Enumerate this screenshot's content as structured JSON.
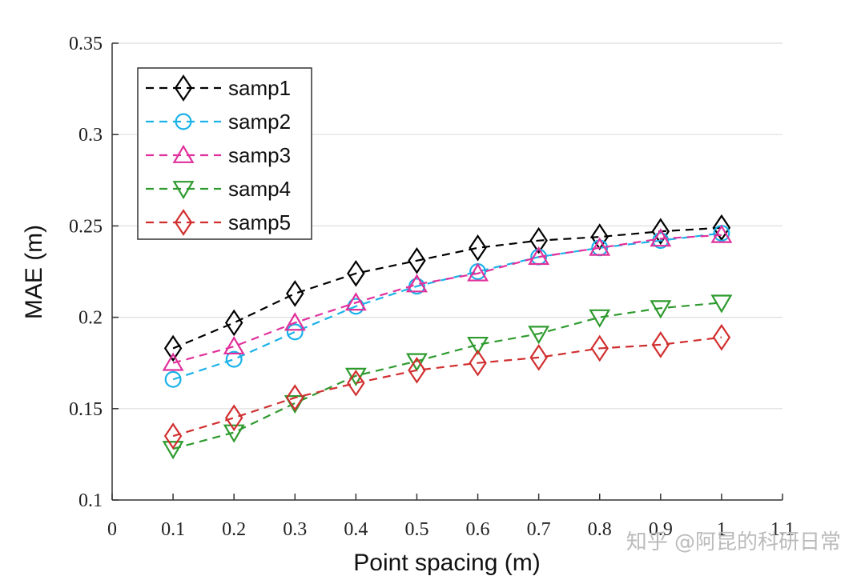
{
  "chart_data": {
    "type": "line",
    "xlabel": "Point spacing (m)",
    "ylabel": "MAE (m)",
    "xlim": [
      0,
      1.1
    ],
    "ylim": [
      0.1,
      0.35
    ],
    "xticks": [
      0,
      0.1,
      0.2,
      0.3,
      0.4,
      0.5,
      0.6,
      0.7,
      0.8,
      0.9,
      1,
      1.1
    ],
    "xtick_labels": [
      "0",
      "0.1",
      "0.2",
      "0.3",
      "0.4",
      "0.5",
      "0.6",
      "0.7",
      "0.8",
      "0.9",
      "1",
      "1.1"
    ],
    "yticks": [
      0.1,
      0.15,
      0.2,
      0.25,
      0.3,
      0.35
    ],
    "ytick_labels": [
      "0.1",
      "0.15",
      "0.2",
      "0.25",
      "0.3",
      "0.35"
    ],
    "grid": "horizontal",
    "legend_position": "top-left",
    "x": [
      0.1,
      0.2,
      0.3,
      0.4,
      0.5,
      0.6,
      0.7,
      0.8,
      0.9,
      1.0
    ],
    "series": [
      {
        "name": "samp1",
        "color": "#000000",
        "marker": "diamond",
        "values": [
          0.183,
          0.197,
          0.213,
          0.224,
          0.231,
          0.238,
          0.242,
          0.244,
          0.247,
          0.249
        ]
      },
      {
        "name": "samp2",
        "color": "#1ab2e8",
        "marker": "circle",
        "values": [
          0.166,
          0.177,
          0.192,
          0.206,
          0.217,
          0.225,
          0.233,
          0.238,
          0.242,
          0.246
        ]
      },
      {
        "name": "samp3",
        "color": "#e0309b",
        "marker": "triangle-up",
        "values": [
          0.175,
          0.184,
          0.197,
          0.208,
          0.218,
          0.224,
          0.233,
          0.238,
          0.243,
          0.245
        ]
      },
      {
        "name": "samp4",
        "color": "#2e9a2e",
        "marker": "triangle-down",
        "values": [
          0.128,
          0.137,
          0.153,
          0.168,
          0.176,
          0.185,
          0.191,
          0.2,
          0.205,
          0.208
        ]
      },
      {
        "name": "samp5",
        "color": "#d12f2f",
        "marker": "diamond",
        "values": [
          0.135,
          0.145,
          0.156,
          0.164,
          0.171,
          0.175,
          0.178,
          0.183,
          0.185,
          0.189
        ]
      }
    ]
  },
  "watermark": "知乎 @阿昆的科研日常"
}
